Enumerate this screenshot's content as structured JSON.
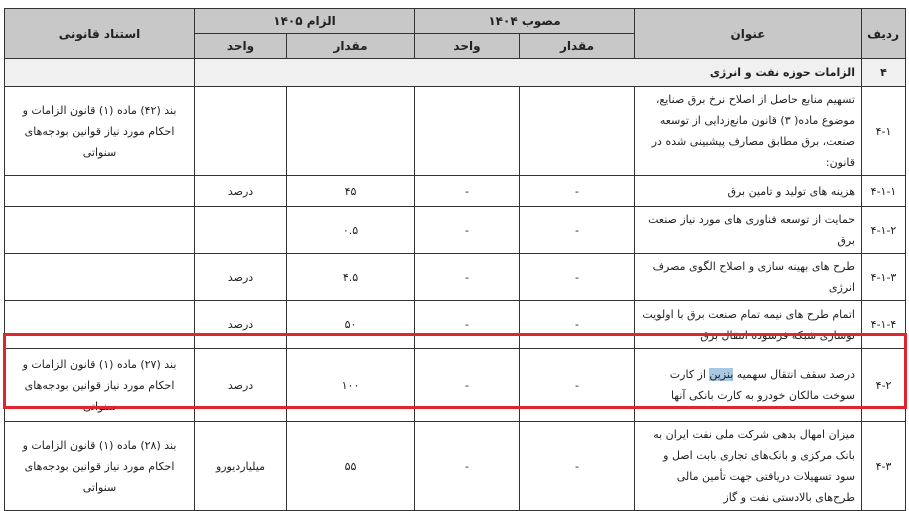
{
  "header": {
    "row": "ردیف",
    "title": "عنوان",
    "approved": "مصوب ۱۴۰۴",
    "obligation": "الزام ۱۴۰۵",
    "amount": "مقدار",
    "unit": "واحد",
    "legal": "استناد قانونی"
  },
  "section": {
    "id": "۴",
    "title": "الزامات حوزه نفت و انرژی"
  },
  "rows": [
    {
      "id": "۴-۱",
      "title": "تسهیم منابع حاصل از اصلاح نرخ برق صنایع، موضوع ماده( ۳) قانون مانع‌زدایی از توسعه صنعت، برق مطابق مصارف پیشبینی شده در قانون:",
      "a1": "",
      "u1": "",
      "a2": "",
      "u2": "",
      "legal": "بند (۴۲) ماده (۱) قانون الزامات و احکام مورد نیاز قوانین بودجه‌های سنواتی"
    },
    {
      "id": "۴-۱-۱",
      "title": "هزینه های تولید و تامین برق",
      "a1": "-",
      "u1": "-",
      "a2": "۴۵",
      "u2": "درصد",
      "legal": ""
    },
    {
      "id": "۴-۱-۲",
      "title": "حمایت از توسعه  فناوری های مورد نیاز صنعت برق",
      "a1": "-",
      "u1": "-",
      "a2": "۰.۵",
      "u2": "",
      "legal": ""
    },
    {
      "id": "۴-۱-۳",
      "title": "طرح های بهینه سازی و اصلاح الگوی مصرف انرژی",
      "a1": "-",
      "u1": "-",
      "a2": "۴.۵",
      "u2": "درصد",
      "legal": ""
    },
    {
      "id": "۴-۱-۴",
      "title": "اتمام طرح های نیمه تمام صنعت برق با اولویت نوسازی شبکه فرسوده انتقال برق",
      "a1": "-",
      "u1": "-",
      "a2": "۵۰",
      "u2": "درصد",
      "legal": ""
    },
    {
      "id": "۴-۲",
      "title_pre": "درصد سقف انتقال سهمیه ",
      "title_hl": "بنزین",
      "title_post": " از کارت سوخت مالکان خودرو به کارت بانکی آنها",
      "a1": "-",
      "u1": "-",
      "a2": "۱۰۰",
      "u2": "درصد",
      "legal": "بند (۲۷) ماده (۱) قانون الزامات و احکام مورد نیاز قوانین بودجه‌های سنواتی"
    },
    {
      "id": "۴-۳",
      "title": "میزان امهال بدهی شرکت ملی نفت ایران به بانک مرکزی و بانک‌های تجاری بابت اصل و سود تسهیلات دریافتی جهت تأمین مالی طرح‌های بالادستی نفت و گاز",
      "a1": "-",
      "u1": "-",
      "a2": "۵۵",
      "u2": "میلیاردیورو",
      "legal": "بند (۲۸) ماده (۱) قانون الزامات و احکام مورد نیاز قوانین بودجه‌های سنواتی"
    }
  ],
  "highlight_color": "#e0252e"
}
